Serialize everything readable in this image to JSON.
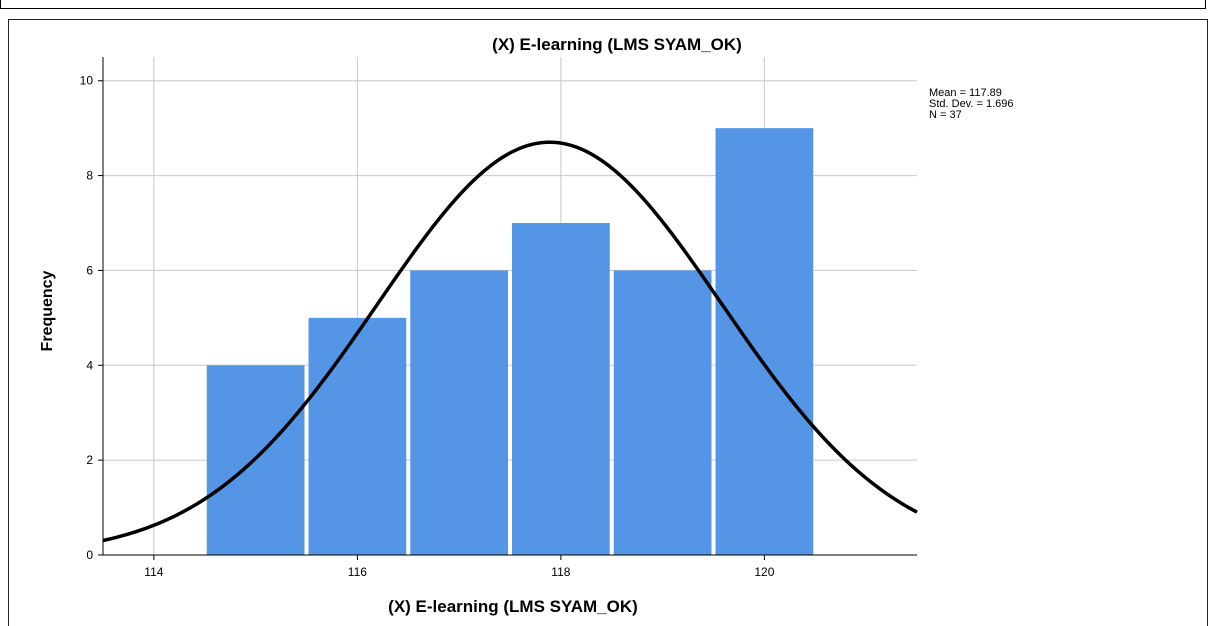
{
  "chart_data": {
    "type": "histogram",
    "title": "(X) E-learning (LMS SYAM_OK)",
    "xlabel": "(X) E-learning (LMS SYAM_OK)",
    "ylabel": "Frequency",
    "xlim": [
      113.5,
      121.5
    ],
    "ylim": [
      0,
      10.5
    ],
    "x_ticks": [
      "114",
      "116",
      "118",
      "120"
    ],
    "y_ticks": [
      "0",
      "2",
      "4",
      "6",
      "8",
      "10"
    ],
    "bin_width": 1,
    "categories": [
      115,
      116,
      117,
      118,
      119,
      120
    ],
    "values": [
      4,
      5,
      6,
      7,
      6,
      9
    ],
    "bar_color": "#5595e5",
    "curve_color": "#000000",
    "normal_curve": {
      "mean": 117.89,
      "std": 1.696,
      "n": 37
    },
    "stats": {
      "mean": "Mean = 117.89",
      "std": "Std. Dev. = 1.696",
      "n": "N = 37"
    },
    "grid": true
  }
}
